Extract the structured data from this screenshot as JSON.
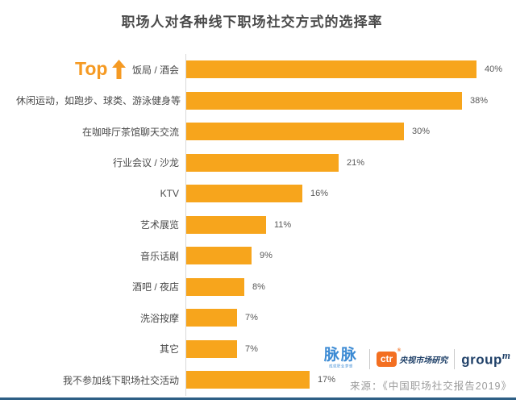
{
  "page": {
    "title": "职场人对各种线下职场社交方式的选择率"
  },
  "chart_data": {
    "type": "bar",
    "orientation": "horizontal",
    "title": "职场人对各种线下职场社交方式的选择率",
    "categories": [
      "饭局 / 酒会",
      "休闲运动，如跑步、球类、游泳健身等",
      "在咖啡厅茶馆聊天交流",
      "行业会议 / 沙龙",
      "KTV",
      "艺术展览",
      "音乐话剧",
      "酒吧 / 夜店",
      "洗浴按摩",
      "其它",
      "我不参加线下职场社交活动"
    ],
    "values": [
      40,
      38,
      30,
      21,
      16,
      11,
      9,
      8,
      7,
      7,
      17
    ],
    "value_labels": [
      "40%",
      "38%",
      "30%",
      "21%",
      "16%",
      "11%",
      "9%",
      "8%",
      "7%",
      "7%",
      "17%"
    ],
    "unit": "%",
    "xlim": [
      0,
      42
    ],
    "grid": false,
    "legend": false,
    "annotation": "Top",
    "bar_color": "#f7a51c",
    "axis_color": "#d9d9d9",
    "label_color": "#4a4a4a",
    "value_color": "#595959"
  },
  "footer": {
    "logos": {
      "maimai": {
        "name": "脉脉",
        "tagline": "成就职业梦想",
        "color": "#3d8bd4"
      },
      "ctr": {
        "abbr": "ctr",
        "reg_mark": "®",
        "text": "央视市场研究",
        "box_color": "#f36f21",
        "text_color": "#1f4068"
      },
      "groupm": {
        "text": "group",
        "sup": "m",
        "color": "#1f4068"
      }
    },
    "source": "来源：《中国职场社交报告2019》",
    "bottom_line_color": "#2e5f85"
  }
}
